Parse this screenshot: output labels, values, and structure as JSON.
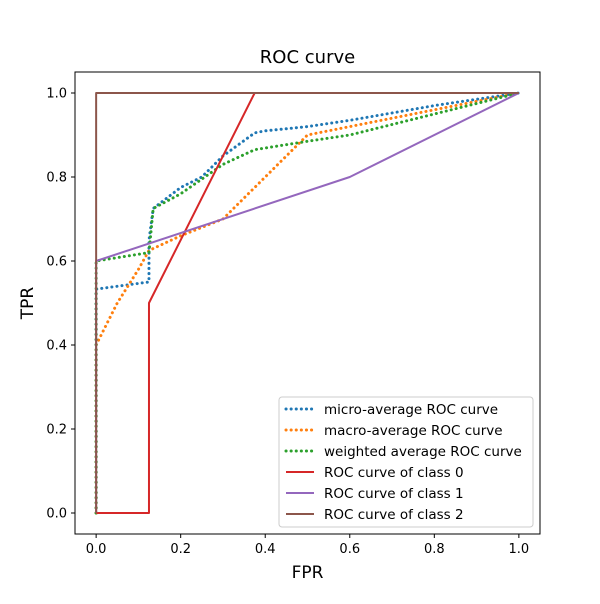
{
  "chart_data": {
    "type": "line",
    "title": "ROC curve",
    "xlabel": "FPR",
    "ylabel": "TPR",
    "xlim": [
      -0.05,
      1.05
    ],
    "ylim": [
      -0.05,
      1.05
    ],
    "xticks": [
      0.0,
      0.2,
      0.4,
      0.6,
      0.8,
      1.0
    ],
    "xtick_labels": [
      "0.0",
      "0.2",
      "0.4",
      "0.6",
      "0.8",
      "1.0"
    ],
    "yticks": [
      0.0,
      0.2,
      0.4,
      0.6,
      0.8,
      1.0
    ],
    "ytick_labels": [
      "0.0",
      "0.2",
      "0.4",
      "0.6",
      "0.8",
      "1.0"
    ],
    "grid": false,
    "legend_position": "lower-right",
    "series": [
      {
        "name": "micro-average ROC curve",
        "color": "#1f77b4",
        "style": "dotted",
        "x": [
          0.0,
          0.0,
          0.125,
          0.125,
          0.135,
          0.2,
          0.25,
          0.3,
          0.375,
          0.4,
          0.5,
          0.6,
          0.8,
          1.0
        ],
        "y": [
          0.0,
          0.533,
          0.55,
          0.65,
          0.725,
          0.775,
          0.8,
          0.85,
          0.905,
          0.91,
          0.92,
          0.935,
          0.97,
          1.0
        ]
      },
      {
        "name": "macro-average ROC curve",
        "color": "#ff7f0e",
        "style": "dotted",
        "x": [
          0.0,
          0.0,
          0.05,
          0.1,
          0.125,
          0.2,
          0.3,
          0.4,
          0.45,
          0.5,
          0.6,
          0.8,
          1.0
        ],
        "y": [
          0.0,
          0.4,
          0.5,
          0.58,
          0.625,
          0.66,
          0.7,
          0.8,
          0.85,
          0.9,
          0.92,
          0.96,
          1.0
        ]
      },
      {
        "name": "weighted average ROC curve",
        "color": "#2ca02c",
        "style": "dotted",
        "x": [
          0.0,
          0.0,
          0.125,
          0.135,
          0.2,
          0.3,
          0.375,
          0.5,
          0.6,
          0.8,
          1.0
        ],
        "y": [
          0.0,
          0.6,
          0.62,
          0.725,
          0.76,
          0.83,
          0.865,
          0.885,
          0.9,
          0.95,
          1.0
        ]
      },
      {
        "name": "ROC curve of class 0",
        "color": "#d62728",
        "style": "solid",
        "x": [
          0.0,
          0.0,
          0.125,
          0.125,
          0.375,
          1.0
        ],
        "y": [
          0.0,
          0.0,
          0.0,
          0.5,
          1.0,
          1.0
        ]
      },
      {
        "name": "ROC curve of class 1",
        "color": "#9467bd",
        "style": "solid",
        "x": [
          0.0,
          0.0,
          0.6,
          1.0
        ],
        "y": [
          0.0,
          0.6,
          0.8,
          1.0
        ]
      },
      {
        "name": "ROC curve of class 2",
        "color": "#8c564b",
        "style": "solid",
        "x": [
          0.0,
          0.0,
          1.0
        ],
        "y": [
          0.0,
          1.0,
          1.0
        ]
      }
    ]
  }
}
